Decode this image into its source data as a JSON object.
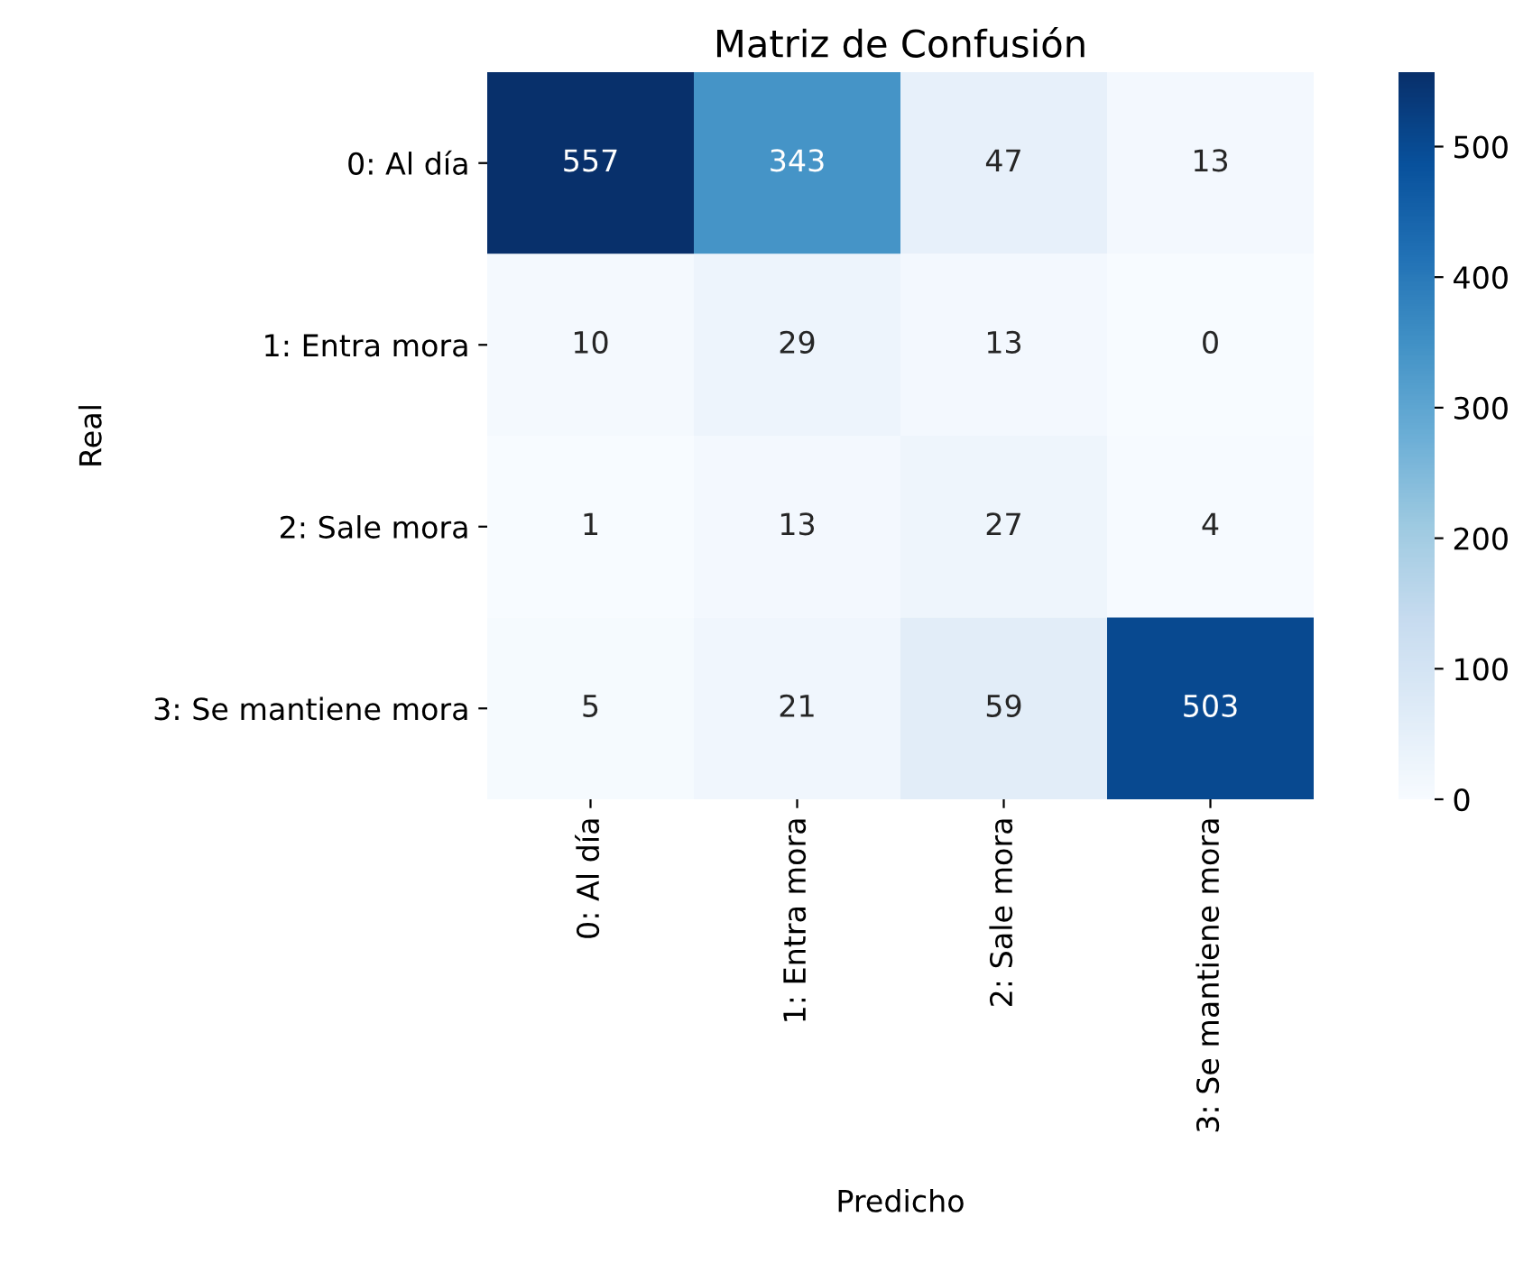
{
  "chart_data": {
    "type": "heatmap",
    "title": "Matriz de Confusión",
    "xlabel": "Predicho",
    "ylabel": "Real",
    "categories": [
      "0: Al día",
      "1: Entra mora",
      "2: Sale mora",
      "3: Se mantiene mora"
    ],
    "y_categories": [
      "0: Al día",
      "1: Entra mora",
      "2: Sale mora",
      "3: Se mantiene mora"
    ],
    "cells": [
      [
        557,
        343,
        47,
        13
      ],
      [
        10,
        29,
        13,
        0
      ],
      [
        1,
        13,
        27,
        4
      ],
      [
        5,
        21,
        59,
        503
      ]
    ],
    "clim": [
      0,
      557
    ],
    "cticks": [
      0,
      100,
      200,
      300,
      400,
      500
    ],
    "data_labels": true
  }
}
